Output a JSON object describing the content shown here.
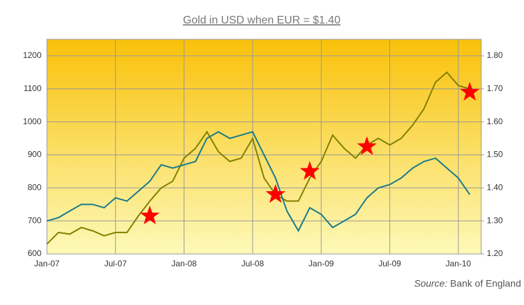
{
  "chart_data": {
    "type": "line",
    "title": "Gold in USD when EUR = $1.40",
    "source_label": "Source:",
    "source": "Bank of England",
    "x": [
      "2007-01",
      "2007-02",
      "2007-03",
      "2007-04",
      "2007-05",
      "2007-06",
      "2007-07",
      "2007-08",
      "2007-09",
      "2007-10",
      "2007-11",
      "2007-12",
      "2008-01",
      "2008-02",
      "2008-03",
      "2008-04",
      "2008-05",
      "2008-06",
      "2008-07",
      "2008-08",
      "2008-09",
      "2008-10",
      "2008-11",
      "2008-12",
      "2009-01",
      "2009-02",
      "2009-03",
      "2009-04",
      "2009-05",
      "2009-06",
      "2009-07",
      "2009-08",
      "2009-09",
      "2009-10",
      "2009-11",
      "2009-12",
      "2010-01",
      "2010-02"
    ],
    "series": [
      {
        "color": "#808000",
        "values": [
          630,
          665,
          660,
          680,
          670,
          655,
          665,
          665,
          715,
          760,
          800,
          820,
          890,
          920,
          970,
          910,
          880,
          890,
          950,
          830,
          780,
          760,
          760,
          830,
          880,
          960,
          920,
          890,
          930,
          950,
          930,
          950,
          990,
          1040,
          1120,
          1150,
          1110,
          1100
        ]
      },
      {
        "color": "#1a7a8a",
        "axis": "y2",
        "values": [
          1.3,
          1.31,
          1.33,
          1.35,
          1.35,
          1.34,
          1.37,
          1.36,
          1.39,
          1.42,
          1.47,
          1.46,
          1.47,
          1.48,
          1.55,
          1.57,
          1.55,
          1.56,
          1.57,
          1.5,
          1.43,
          1.33,
          1.27,
          1.34,
          1.32,
          1.28,
          1.3,
          1.32,
          1.37,
          1.4,
          1.41,
          1.43,
          1.46,
          1.48,
          1.49,
          1.46,
          1.43,
          1.38
        ]
      }
    ],
    "markers": {
      "color": "#ff0000",
      "x": [
        "2007-10",
        "2008-09",
        "2008-12",
        "2009-05",
        "2010-02"
      ],
      "values": [
        715,
        780,
        850,
        925,
        1090
      ]
    },
    "xlim": [
      "2007-01",
      "2010-03"
    ],
    "xticks": [
      {
        "value": "2007-01",
        "label": "Jan-07"
      },
      {
        "value": "2007-07",
        "label": "Jul-07"
      },
      {
        "value": "2008-01",
        "label": "Jan-08"
      },
      {
        "value": "2008-07",
        "label": "Jul-08"
      },
      {
        "value": "2009-01",
        "label": "Jan-09"
      },
      {
        "value": "2009-07",
        "label": "Jul-09"
      },
      {
        "value": "2010-01",
        "label": "Jan-10"
      }
    ],
    "ylim": [
      600,
      1250
    ],
    "yticks": [
      600,
      700,
      800,
      900,
      1000,
      1100,
      1200
    ],
    "y2lim": [
      1.2,
      1.85
    ],
    "y2ticks": [
      {
        "value": 1.2,
        "label": "1.20"
      },
      {
        "value": 1.3,
        "label": "1.30"
      },
      {
        "value": 1.4,
        "label": "1.40"
      },
      {
        "value": 1.5,
        "label": "1.50"
      },
      {
        "value": 1.6,
        "label": "1.60"
      },
      {
        "value": 1.7,
        "label": "1.70"
      },
      {
        "value": 1.8,
        "label": "1.80"
      }
    ],
    "grid": true
  }
}
